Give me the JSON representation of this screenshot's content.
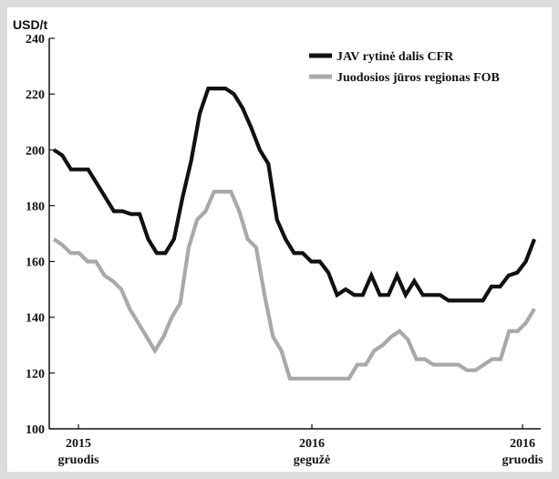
{
  "chart_data": {
    "type": "line",
    "y_unit": "USD/t",
    "ylim": [
      100,
      240
    ],
    "y_ticks": [
      100,
      120,
      140,
      160,
      180,
      200,
      220,
      240
    ],
    "x_tick_labels": [
      {
        "year": "2015",
        "month": "gruodis"
      },
      {
        "year": "2016",
        "month": "gegužė"
      },
      {
        "year": "2016",
        "month": "gruodis"
      }
    ],
    "grid": false,
    "legend_position": "top-right",
    "series": [
      {
        "name": "JAV rytinė dalis CFR",
        "color": "#111111",
        "values": [
          200,
          198,
          193,
          193,
          193,
          188,
          183,
          178,
          178,
          177,
          177,
          168,
          163,
          163,
          168,
          183,
          196,
          213,
          222,
          222,
          222,
          220,
          215,
          208,
          200,
          195,
          175,
          168,
          163,
          163,
          160,
          160,
          156,
          148,
          150,
          148,
          148,
          155,
          148,
          148,
          155,
          148,
          153,
          148,
          148,
          148,
          146,
          146,
          146,
          146,
          146,
          151,
          151,
          155,
          156,
          160,
          168
        ]
      },
      {
        "name": "Juodosios jūros regionas FOB",
        "color": "#a9a9a9",
        "values": [
          168,
          166,
          163,
          163,
          160,
          160,
          155,
          153,
          150,
          143,
          138,
          133,
          128,
          133,
          140,
          145,
          165,
          175,
          178,
          185,
          185,
          185,
          178,
          168,
          165,
          148,
          133,
          128,
          118,
          118,
          118,
          118,
          118,
          118,
          118,
          118,
          123,
          123,
          128,
          130,
          133,
          135,
          132,
          125,
          125,
          123,
          123,
          123,
          123,
          121,
          121,
          123,
          125,
          125,
          135,
          135,
          138,
          143
        ]
      }
    ]
  }
}
